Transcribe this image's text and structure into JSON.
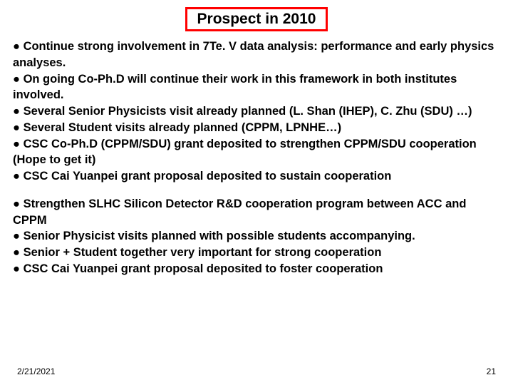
{
  "title": {
    "text": "Prospect in 2010",
    "border_color": "#ff0000",
    "text_color": "#000000"
  },
  "block1": {
    "color": "#000000",
    "items": [
      "Continue strong involvement in 7Te. V data analysis: performance and early physics analyses.",
      "On going Co-Ph.D will continue their work in this framework in both institutes involved.",
      "Several Senior Physicists visit already planned (L. Shan (IHEP), C. Zhu (SDU) …)",
      "Several Student visits already planned (CPPM, LPNHE…)",
      "CSC Co-Ph.D (CPPM/SDU) grant deposited to strengthen CPPM/SDU cooperation (Hope to get it)",
      "CSC Cai Yuanpei grant proposal deposited to sustain cooperation"
    ]
  },
  "block2": {
    "color": "#000000",
    "items": [
      "Strengthen SLHC Silicon Detector R&D cooperation program between ACC and CPPM",
      "Senior Physicist visits planned with possible students accompanying.",
      "Senior + Student together very important for strong cooperation",
      "CSC Cai Yuanpei grant proposal deposited to foster cooperation"
    ]
  },
  "footer": {
    "date": "2/21/2021",
    "page": "21"
  },
  "bullet_glyph": "●"
}
